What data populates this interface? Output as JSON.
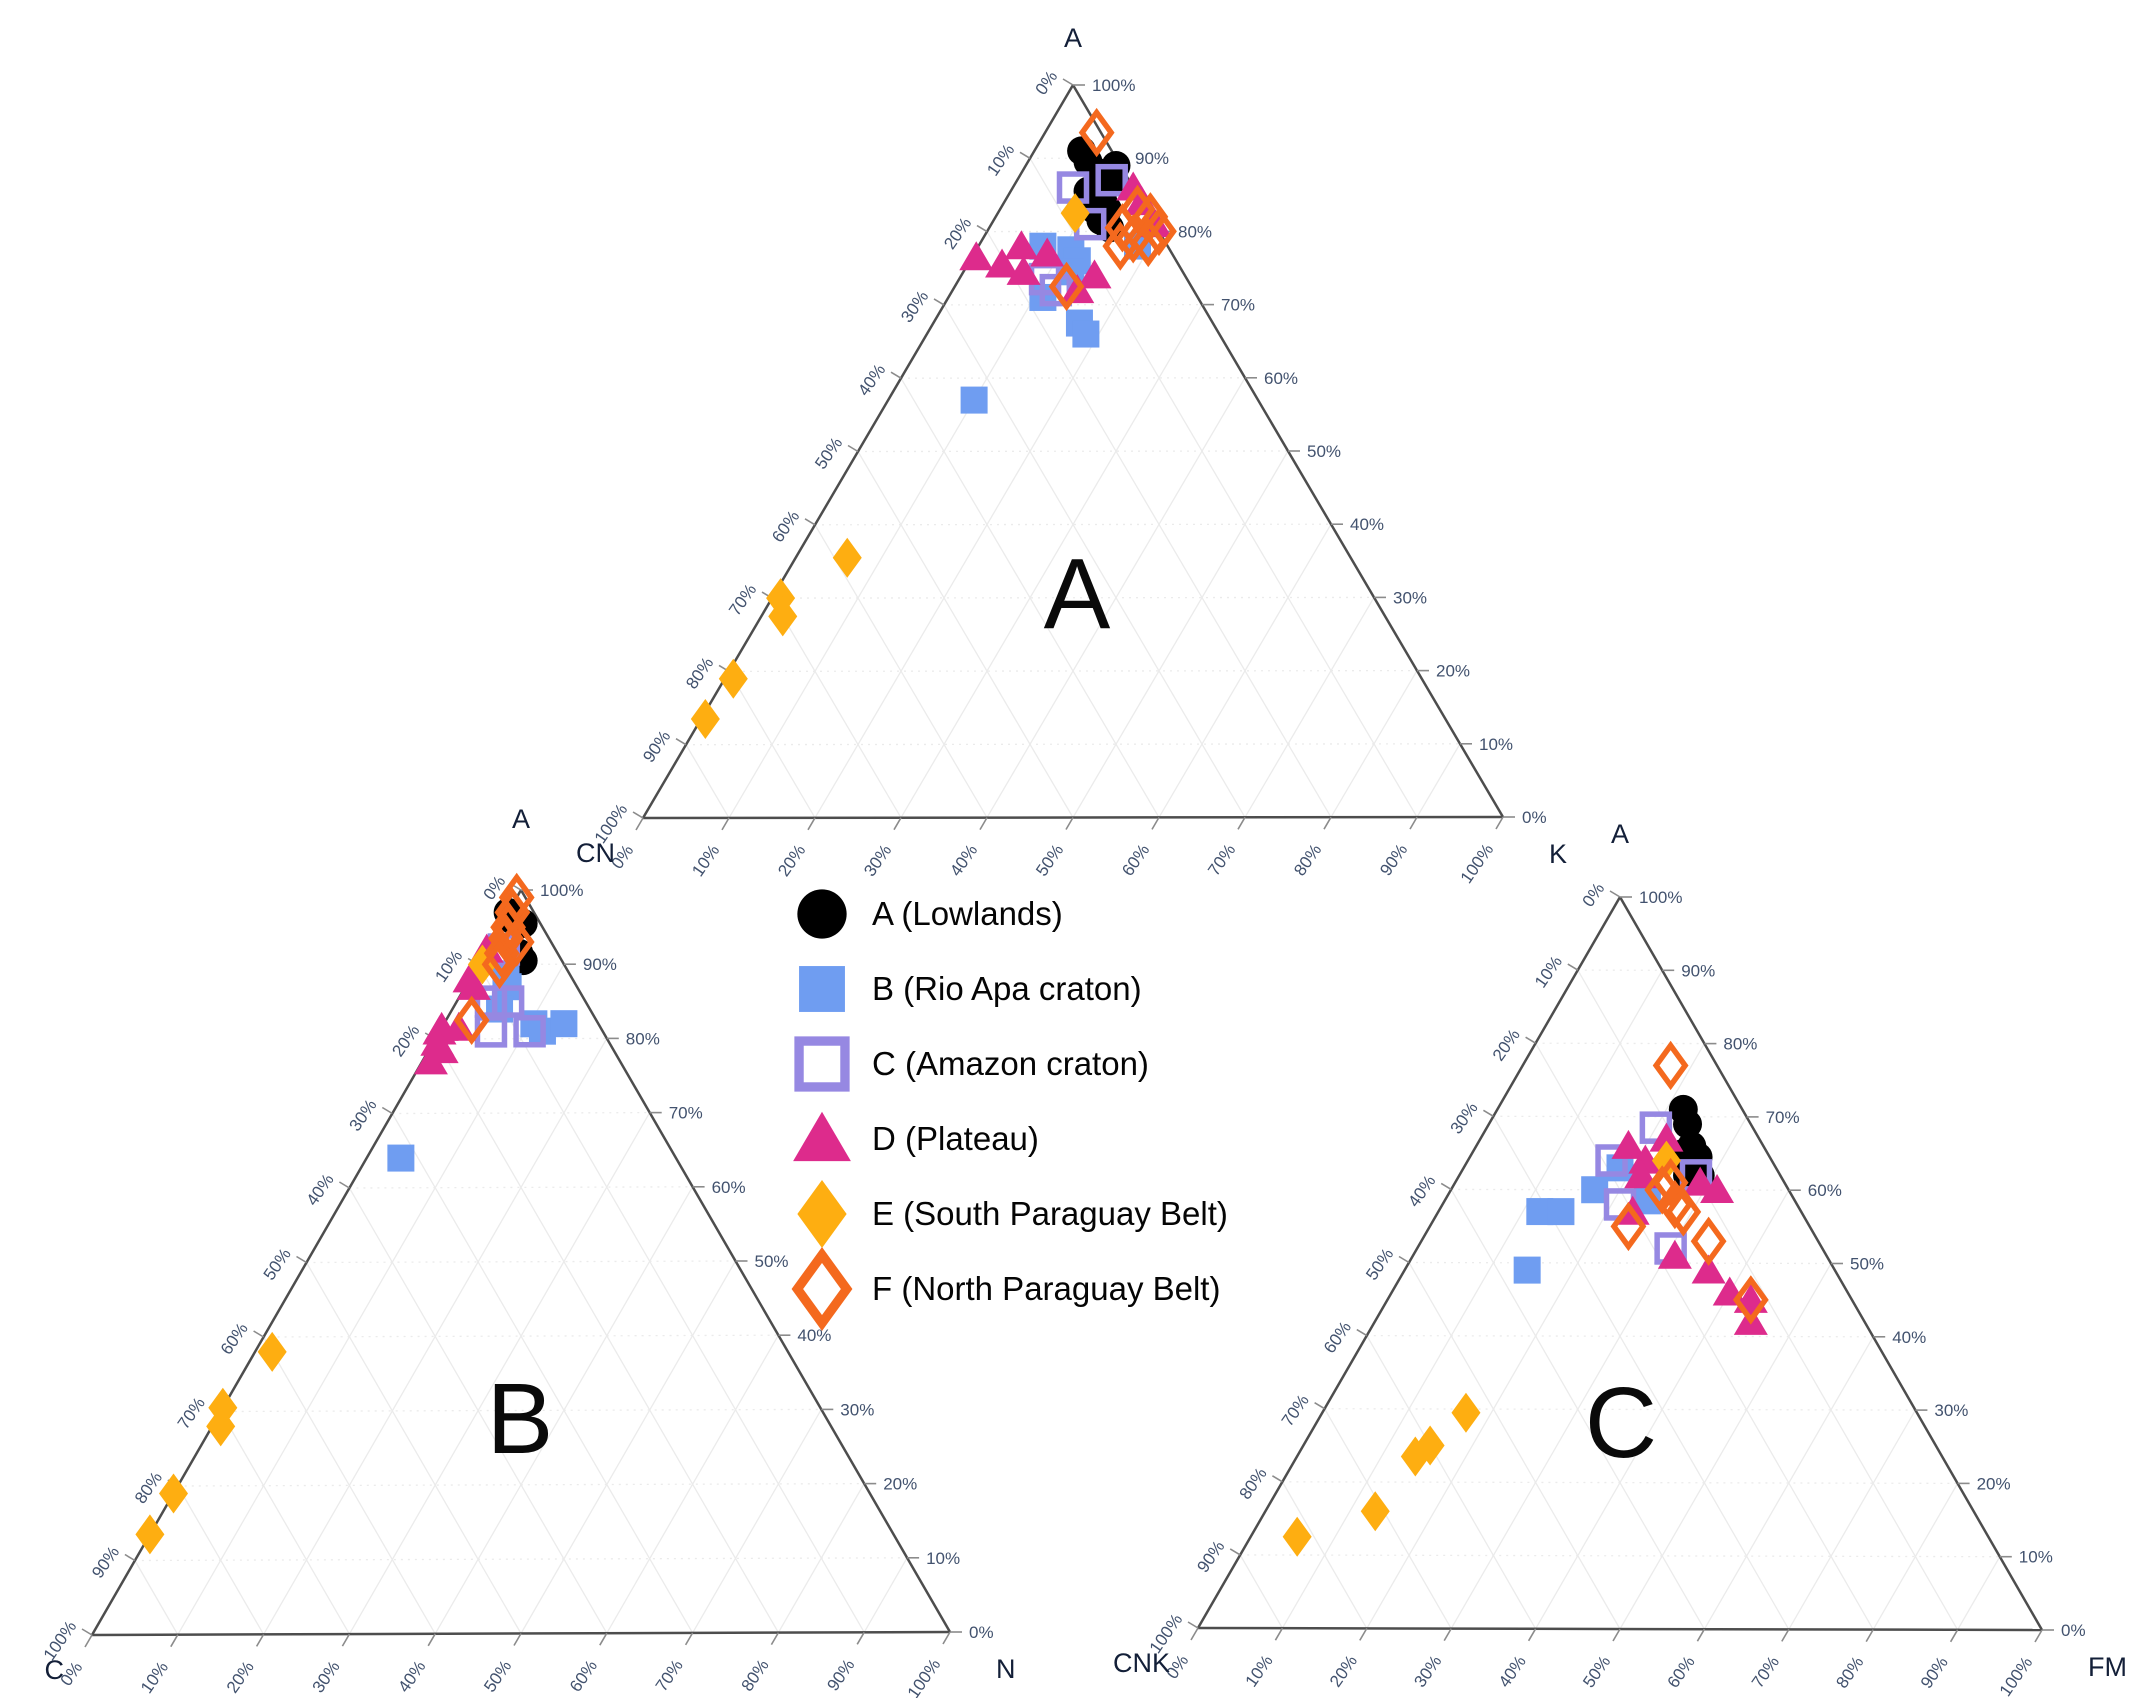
{
  "figure": {
    "background": "#ffffff",
    "style": {
      "edge": "#4d4d4d",
      "grid": "#ebebeb",
      "tick_mark": "#8b8b8b",
      "tick_text": "#42526e",
      "corner_text": "#131f38",
      "panel_letter_color": "#0a0a0a"
    }
  },
  "legend": {
    "items": [
      {
        "key": "A",
        "label": "A (Lowlands)",
        "marker": "circle",
        "color": "#000000"
      },
      {
        "key": "B",
        "label": "B (Rio Apa craton)",
        "marker": "square",
        "color": "#6f9df1"
      },
      {
        "key": "C",
        "label": "C (Amazon craton)",
        "marker": "open-square",
        "color": "#9688e2"
      },
      {
        "key": "D",
        "label": "D (Plateau)",
        "marker": "triangle",
        "color": "#dd2b8c"
      },
      {
        "key": "E",
        "label": "E (South Paraguay Belt)",
        "marker": "diamond",
        "color": "#feae11"
      },
      {
        "key": "F",
        "label": "F (North Paraguay Belt)",
        "marker": "open-diamond",
        "color": "#f4691e"
      }
    ]
  },
  "chart_data": [
    {
      "type": "ternary",
      "panel_letter": "A",
      "apex_label": "A",
      "left_label": "CN",
      "right_label": "K",
      "left_ticks": [
        "0%",
        "10%",
        "20%",
        "30%",
        "40%",
        "50%",
        "60%",
        "70%",
        "80%",
        "90%",
        "100%"
      ],
      "right_ticks": [
        "100%",
        "90%",
        "80%",
        "70%",
        "60%",
        "50%",
        "40%",
        "30%",
        "20%",
        "10%",
        "0%"
      ],
      "bottom_ticks": [
        "0%",
        "10%",
        "20%",
        "30%",
        "40%",
        "50%",
        "60%",
        "70%",
        "80%",
        "90%",
        "100%"
      ],
      "series": [
        {
          "key": "A",
          "name": "A (Lowlands)",
          "points": [
            [
              91,
              3.5,
              5.5
            ],
            [
              89.5,
              3.5,
              7
            ],
            [
              89,
              0.5,
              10.5
            ],
            [
              88,
              3,
              9
            ],
            [
              86.5,
              2.5,
              11
            ],
            [
              85.5,
              5.5,
              9
            ],
            [
              84,
              4.5,
              11.5
            ],
            [
              83,
              6,
              11
            ],
            [
              83,
              4.5,
              12.5
            ],
            [
              81.5,
              6,
              12.5
            ],
            [
              80.5,
              5.5,
              14
            ]
          ]
        },
        {
          "key": "B",
          "name": "B (Rio Apa craton)",
          "points": [
            [
              78,
              14.5,
              7.5
            ],
            [
              77.5,
              11.5,
              11
            ],
            [
              76,
              11.5,
              12.5
            ],
            [
              74.5,
              13,
              12.5
            ],
            [
              78,
              3.5,
              18.5
            ],
            [
              71,
              18,
              11
            ],
            [
              67.5,
              15.5,
              17
            ],
            [
              66,
              15.5,
              18.5
            ],
            [
              57,
              33,
              10
            ]
          ]
        },
        {
          "key": "C",
          "name": "C (Amazon craton)",
          "points": [
            [
              86,
              7,
              7
            ],
            [
              87,
              2,
              11
            ],
            [
              81,
              7.5,
              11.5
            ],
            [
              73.5,
              16.5,
              10
            ],
            [
              72,
              16,
              12
            ]
          ]
        },
        {
          "key": "D",
          "name": "D (Plateau)",
          "points": [
            [
              86,
              0,
              14
            ],
            [
              84,
              0,
              16
            ],
            [
              81,
              0,
              19
            ],
            [
              78,
              17,
              5
            ],
            [
              77,
              14.5,
              8.5
            ],
            [
              76.5,
              23,
              0.5
            ],
            [
              75.5,
              20.5,
              4
            ],
            [
              74.5,
              18.5,
              7
            ],
            [
              74,
              10.5,
              15.5
            ],
            [
              72,
              13.5,
              14.5
            ]
          ]
        },
        {
          "key": "E",
          "name": "E (South Paraguay Belt)",
          "points": [
            [
              82.5,
              8.5,
              9
            ],
            [
              35.5,
              58.5,
              6
            ],
            [
              30,
              69,
              1
            ],
            [
              27.5,
              70,
              2.5
            ],
            [
              19,
              80,
              1
            ],
            [
              13.5,
              86,
              0.5
            ]
          ]
        },
        {
          "key": "F",
          "name": "F (North Paraguay Belt)",
          "points": [
            [
              93.5,
              0.5,
              6
            ],
            [
              83,
              1,
              16
            ],
            [
              82,
              0,
              18
            ],
            [
              80,
              0,
              20
            ],
            [
              80.5,
              4,
              15.5
            ],
            [
              79,
              3.5,
              17.5
            ],
            [
              78.5,
              2,
              19.5
            ],
            [
              78,
              5.5,
              16.5
            ],
            [
              72.5,
              14.5,
              13
            ]
          ]
        }
      ]
    },
    {
      "type": "ternary",
      "panel_letter": "B",
      "apex_label": "A",
      "left_label": "C",
      "right_label": "N",
      "left_ticks": [
        "0%",
        "10%",
        "20%",
        "30%",
        "40%",
        "50%",
        "60%",
        "70%",
        "80%",
        "90%",
        "100%"
      ],
      "right_ticks": [
        "100%",
        "90%",
        "80%",
        "70%",
        "60%",
        "50%",
        "40%",
        "30%",
        "20%",
        "10%",
        "0%"
      ],
      "bottom_ticks": [
        "0%",
        "10%",
        "20%",
        "30%",
        "40%",
        "50%",
        "60%",
        "70%",
        "80%",
        "90%",
        "100%"
      ],
      "series": [
        {
          "key": "A",
          "name": "A (Lowlands)",
          "points": [
            [
              97,
              3,
              0
            ],
            [
              96,
              3,
              1
            ],
            [
              95.5,
              2,
              2.5
            ],
            [
              91.5,
              4.5,
              4
            ],
            [
              90.5,
              4.5,
              5
            ]
          ]
        },
        {
          "key": "B",
          "name": "B (Rio Apa craton)",
          "points": [
            [
              88.5,
              7.5,
              4
            ],
            [
              87,
              8,
              5
            ],
            [
              84,
              10.5,
              5.5
            ],
            [
              82,
              7.5,
              10.5
            ],
            [
              81,
              7,
              12
            ],
            [
              82,
              4,
              14
            ],
            [
              64,
              32,
              4
            ]
          ]
        },
        {
          "key": "C",
          "name": "C (Amazon craton)",
          "points": [
            [
              92,
              6,
              2
            ],
            [
              85,
              9,
              6
            ],
            [
              85,
              11,
              4
            ],
            [
              81,
              8.5,
              10.5
            ],
            [
              81,
              13,
              6
            ]
          ]
        },
        {
          "key": "D",
          "name": "D (Plateau)",
          "points": [
            [
              92,
              8,
              0
            ],
            [
              88,
              12,
              0
            ],
            [
              87,
              12,
              1
            ],
            [
              81.5,
              18.5,
              0
            ],
            [
              81.5,
              16.5,
              2
            ],
            [
              81,
              19,
              0
            ],
            [
              79.5,
              20,
              0.5
            ],
            [
              78.5,
              20,
              1.5
            ],
            [
              77,
              22,
              1
            ]
          ]
        },
        {
          "key": "E",
          "name": "E (South Paraguay Belt)",
          "points": [
            [
              90,
              9.5,
              0.5
            ],
            [
              38,
              60,
              2
            ],
            [
              30.5,
              69.5,
              0
            ],
            [
              28,
              71,
              1
            ],
            [
              19,
              81,
              0
            ],
            [
              13.5,
              86.5,
              0
            ]
          ]
        },
        {
          "key": "F",
          "name": "F (North Paraguay Belt)",
          "points": [
            [
              99,
              1,
              0
            ],
            [
              97,
              2.5,
              0.5
            ],
            [
              95,
              4,
              1
            ],
            [
              93.5,
              5,
              1.5
            ],
            [
              93,
              4,
              3
            ],
            [
              91.5,
              6.5,
              2
            ],
            [
              90,
              7.5,
              2.5
            ],
            [
              82.5,
              14.5,
              3
            ]
          ]
        }
      ]
    },
    {
      "type": "ternary",
      "panel_letter": "C",
      "apex_label": "A",
      "left_label": "CNK",
      "right_label": "FM",
      "left_ticks": [
        "0%",
        "10%",
        "20%",
        "30%",
        "40%",
        "50%",
        "60%",
        "70%",
        "80%",
        "90%",
        "100%"
      ],
      "right_ticks": [
        "100%",
        "90%",
        "80%",
        "70%",
        "60%",
        "50%",
        "40%",
        "30%",
        "20%",
        "10%",
        "0%"
      ],
      "bottom_ticks": [
        "0%",
        "10%",
        "20%",
        "30%",
        "40%",
        "50%",
        "60%",
        "70%",
        "80%",
        "90%",
        "100%"
      ],
      "series": [
        {
          "key": "A",
          "name": "A (Lowlands)",
          "points": [
            [
              71,
              7,
              22
            ],
            [
              69,
              7.5,
              23.5
            ],
            [
              66,
              8.5,
              25.5
            ],
            [
              65,
              10,
              25
            ],
            [
              64.5,
              8.5,
              27
            ],
            [
              62,
              11,
              27
            ],
            [
              62,
              9.5,
              28.5
            ]
          ]
        },
        {
          "key": "B",
          "name": "B (Rio Apa craton)",
          "points": [
            [
              63,
              18.5,
              18.5
            ],
            [
              60,
              23,
              17
            ],
            [
              58.5,
              17.5,
              24
            ],
            [
              57,
              31,
              12
            ],
            [
              57,
              28.5,
              14.5
            ],
            [
              49,
              36.5,
              14.5
            ]
          ]
        },
        {
          "key": "C",
          "name": "C (Amazon craton)",
          "points": [
            [
              68.5,
              11.5,
              20
            ],
            [
              64,
              19,
              17
            ],
            [
              62,
              10,
              28
            ],
            [
              58,
              21,
              21
            ],
            [
              52,
              18,
              30
            ]
          ]
        },
        {
          "key": "D",
          "name": "D (Plateau)",
          "points": [
            [
              67,
              11,
              22
            ],
            [
              66,
              16,
              18
            ],
            [
              64,
              15,
              21
            ],
            [
              62,
              16.5,
              21.5
            ],
            [
              61,
              10,
              29
            ],
            [
              60,
              8.5,
              31.5
            ],
            [
              57,
              20,
              23
            ],
            [
              51,
              18,
              31
            ],
            [
              49,
              15,
              36
            ],
            [
              46,
              14,
              40
            ],
            [
              45,
              12,
              43
            ],
            [
              42,
              13.5,
              44.5
            ]
          ]
        },
        {
          "key": "E",
          "name": "E (South Paraguay Belt)",
          "points": [
            [
              64,
              12.5,
              23.5
            ],
            [
              29.5,
              53.5,
              17
            ],
            [
              25,
              60,
              15
            ],
            [
              23.5,
              62.5,
              14
            ],
            [
              16,
              71,
              13
            ],
            [
              12.5,
              82,
              5.5
            ]
          ]
        },
        {
          "key": "F",
          "name": "F (North Paraguay Belt)",
          "points": [
            [
              77,
              5.5,
              17.5
            ],
            [
              61,
              13.5,
              25.5
            ],
            [
              60,
              15,
              25
            ],
            [
              58,
              14.5,
              27.5
            ],
            [
              57,
              14,
              29
            ],
            [
              55,
              21.5,
              23.5
            ],
            [
              53,
              13,
              34
            ],
            [
              45,
              12,
              43
            ]
          ]
        }
      ]
    }
  ]
}
